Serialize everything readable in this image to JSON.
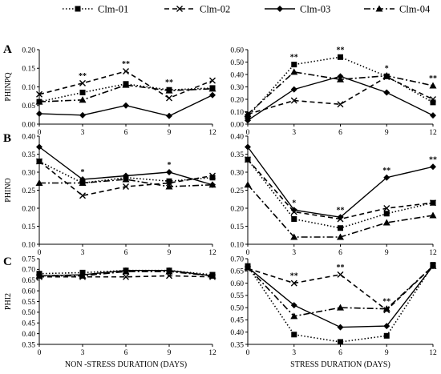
{
  "legend": [
    {
      "series": "Clm-01",
      "label": "Clm-01"
    },
    {
      "series": "Clm-02",
      "label": "Clm-02"
    },
    {
      "series": "Clm-03",
      "label": "Clm-03"
    },
    {
      "series": "Clm-04",
      "label": "Clm-04"
    }
  ],
  "series_styles": {
    "Clm-01": {
      "dash": "1.5,2.5",
      "marker": "square",
      "width": 1.6
    },
    "Clm-02": {
      "dash": "6,4",
      "marker": "x",
      "width": 1.6
    },
    "Clm-03": {
      "dash": "",
      "marker": "diamond",
      "width": 1.4
    },
    "Clm-04": {
      "dash": "8,3,2,3",
      "marker": "triangle",
      "width": 1.6
    }
  },
  "chart_data": [
    {
      "type": "line",
      "row": "A",
      "ylabel": "PHINPQ",
      "xlabel": "",
      "x": [
        0,
        3,
        6,
        9,
        12
      ],
      "xlim": [
        0,
        12
      ],
      "ylim": [
        0,
        0.2
      ],
      "yticks": [
        "0.00",
        "0.05",
        "0.10",
        "0.15",
        "0.20"
      ],
      "series": [
        {
          "name": "Clm-01",
          "values": [
            0.06,
            0.085,
            0.108,
            0.092,
            0.097
          ]
        },
        {
          "name": "Clm-02",
          "values": [
            0.08,
            0.11,
            0.142,
            0.07,
            0.117
          ]
        },
        {
          "name": "Clm-03",
          "values": [
            0.028,
            0.024,
            0.05,
            0.022,
            0.078
          ]
        },
        {
          "name": "Clm-04",
          "values": [
            0.06,
            0.065,
            0.105,
            0.09,
            0.095
          ]
        }
      ],
      "significance": [
        {
          "x": 3,
          "label": "**"
        },
        {
          "x": 6,
          "label": "**"
        },
        {
          "x": 9,
          "label": "**"
        }
      ]
    },
    {
      "type": "line",
      "row": "A",
      "ylabel": "",
      "xlabel": "",
      "x": [
        0,
        3,
        6,
        9,
        12
      ],
      "xlim": [
        0,
        12
      ],
      "ylim": [
        0,
        0.6
      ],
      "yticks": [
        "0.00",
        "0.10",
        "0.20",
        "0.30",
        "0.40",
        "0.50",
        "0.60"
      ],
      "series": [
        {
          "name": "Clm-01",
          "values": [
            0.06,
            0.48,
            0.54,
            0.385,
            0.175
          ]
        },
        {
          "name": "Clm-02",
          "values": [
            0.08,
            0.19,
            0.16,
            0.38,
            0.2
          ]
        },
        {
          "name": "Clm-03",
          "values": [
            0.03,
            0.28,
            0.385,
            0.255,
            0.07
          ]
        },
        {
          "name": "Clm-04",
          "values": [
            0.08,
            0.42,
            0.36,
            0.39,
            0.31
          ]
        }
      ],
      "significance": [
        {
          "x": 3,
          "label": "**"
        },
        {
          "x": 6,
          "label": "**"
        },
        {
          "x": 9,
          "label": "*"
        },
        {
          "x": 12,
          "label": "**"
        }
      ]
    },
    {
      "type": "line",
      "row": "B",
      "ylabel": "PHINO",
      "xlabel": "",
      "x": [
        0,
        3,
        6,
        9,
        12
      ],
      "xlim": [
        0,
        12
      ],
      "ylim": [
        0.1,
        0.4
      ],
      "yticks": [
        "0.10",
        "0.15",
        "0.20",
        "0.25",
        "0.30",
        "0.35",
        "0.40"
      ],
      "series": [
        {
          "name": "Clm-01",
          "values": [
            0.33,
            0.27,
            0.285,
            0.275,
            0.285
          ]
        },
        {
          "name": "Clm-02",
          "values": [
            0.33,
            0.235,
            0.26,
            0.27,
            0.29
          ]
        },
        {
          "name": "Clm-03",
          "values": [
            0.37,
            0.28,
            0.29,
            0.3,
            0.265
          ]
        },
        {
          "name": "Clm-04",
          "values": [
            0.27,
            0.27,
            0.28,
            0.26,
            0.265
          ]
        }
      ],
      "significance": [
        {
          "x": 3,
          "label": "*"
        },
        {
          "x": 9,
          "label": "*"
        }
      ]
    },
    {
      "type": "line",
      "row": "B",
      "ylabel": "",
      "xlabel": "",
      "x": [
        0,
        3,
        6,
        9,
        12
      ],
      "xlim": [
        0,
        12
      ],
      "ylim": [
        0.1,
        0.4
      ],
      "yticks": [
        "0.10",
        "0.15",
        "0.20",
        "0.25",
        "0.30",
        "0.35",
        "0.40"
      ],
      "series": [
        {
          "name": "Clm-01",
          "values": [
            0.335,
            0.17,
            0.145,
            0.185,
            0.215
          ]
        },
        {
          "name": "Clm-02",
          "values": [
            0.335,
            0.19,
            0.17,
            0.2,
            0.215
          ]
        },
        {
          "name": "Clm-03",
          "values": [
            0.37,
            0.195,
            0.175,
            0.285,
            0.315
          ]
        },
        {
          "name": "Clm-04",
          "values": [
            0.265,
            0.12,
            0.12,
            0.16,
            0.18
          ]
        }
      ],
      "significance": [
        {
          "x": 3,
          "label": "*"
        },
        {
          "x": 6,
          "label": "**"
        },
        {
          "x": 9,
          "label": "**"
        },
        {
          "x": 12,
          "label": "**"
        }
      ]
    },
    {
      "type": "line",
      "row": "C",
      "ylabel": "PHI2",
      "xlabel": "NON -STRESS DURATION (DAYS)",
      "x": [
        0,
        3,
        6,
        9,
        12
      ],
      "xlim": [
        0,
        12
      ],
      "ylim": [
        0.35,
        0.75
      ],
      "yticks": [
        "0.35",
        "0.40",
        "0.45",
        "0.50",
        "0.55",
        "0.60",
        "0.65",
        "0.70",
        "0.75"
      ],
      "series": [
        {
          "name": "Clm-01",
          "values": [
            0.68,
            0.685,
            0.695,
            0.695,
            0.675
          ]
        },
        {
          "name": "Clm-02",
          "values": [
            0.665,
            0.665,
            0.665,
            0.67,
            0.665
          ]
        },
        {
          "name": "Clm-03",
          "values": [
            0.67,
            0.675,
            0.695,
            0.695,
            0.67
          ]
        },
        {
          "name": "Clm-04",
          "values": [
            0.67,
            0.67,
            0.69,
            0.69,
            0.67
          ]
        }
      ],
      "significance": []
    },
    {
      "type": "line",
      "row": "C",
      "ylabel": "",
      "xlabel": "STRESS DURATION (DAYS)",
      "x": [
        0,
        3,
        6,
        9,
        12
      ],
      "xlim": [
        0,
        12
      ],
      "ylim": [
        0.35,
        0.7
      ],
      "yticks": [
        "0.35",
        "0.40",
        "0.45",
        "0.50",
        "0.55",
        "0.60",
        "0.65",
        "0.70"
      ],
      "series": [
        {
          "name": "Clm-01",
          "values": [
            0.67,
            0.39,
            0.36,
            0.385,
            0.675
          ]
        },
        {
          "name": "Clm-02",
          "values": [
            0.66,
            0.6,
            0.635,
            0.49,
            0.67
          ]
        },
        {
          "name": "Clm-03",
          "values": [
            0.665,
            0.51,
            0.42,
            0.425,
            0.67
          ]
        },
        {
          "name": "Clm-04",
          "values": [
            0.665,
            0.465,
            0.5,
            0.495,
            0.67
          ]
        }
      ],
      "significance": [
        {
          "x": 3,
          "label": "**"
        },
        {
          "x": 6,
          "label": "**"
        },
        {
          "x": 9,
          "label": "**"
        }
      ]
    }
  ],
  "xticks": [
    "0",
    "3",
    "6",
    "9",
    "12"
  ]
}
